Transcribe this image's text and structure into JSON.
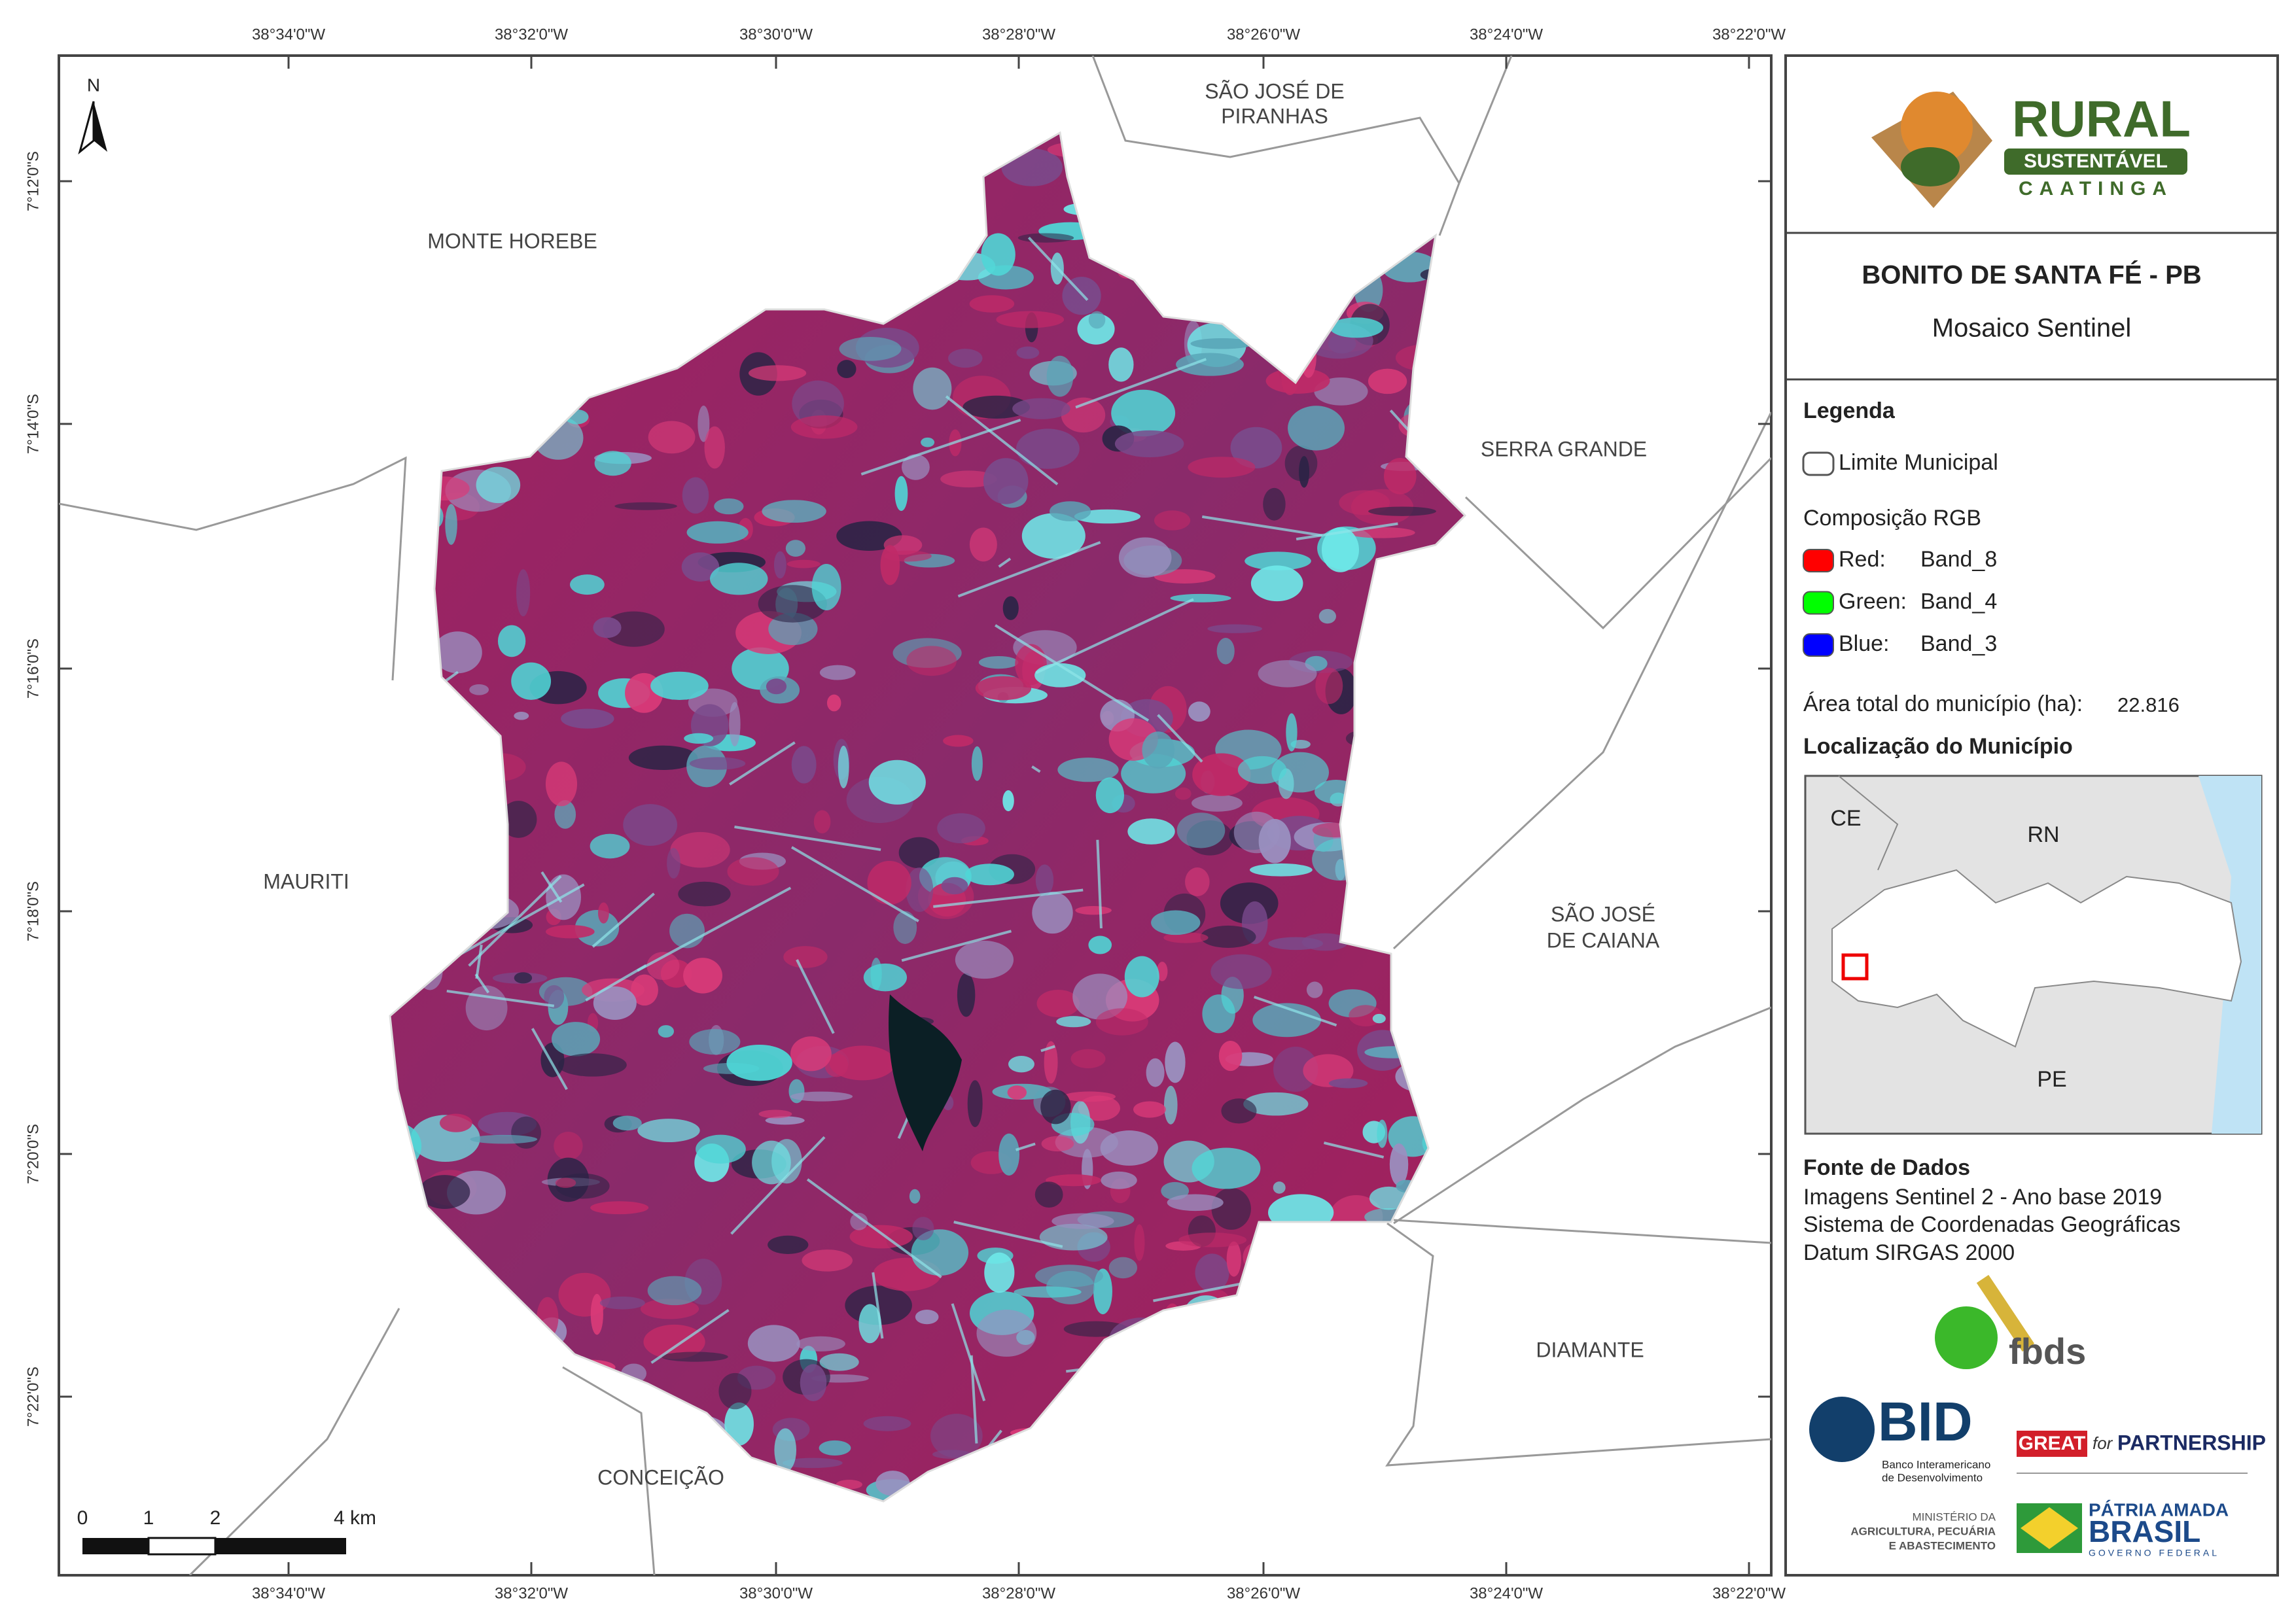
{
  "map": {
    "lon_labels": [
      "38°34'0\"W",
      "38°32'0\"W",
      "38°30'0\"W",
      "38°28'0\"W",
      "38°26'0\"W",
      "38°24'0\"W",
      "38°22'0\"W"
    ],
    "lat_labels": [
      "7°12'0\"S",
      "7°14'0\"S",
      "7°16'0\"S",
      "7°18'0\"S",
      "7°20'0\"S",
      "7°22'0\"S"
    ],
    "places": {
      "sao_jose_piranhas": [
        "SÃO JOSÉ DE",
        "PIRANHAS"
      ],
      "monte_horebe": "MONTE HOREBE",
      "serra_grande": "SERRA GRANDE",
      "mauriti": "MAURITI",
      "sao_jose_caiana": [
        "SÃO JOSÉ",
        "DE CAIANA"
      ],
      "diamante": "DIAMANTE",
      "conceicao": "CONCEIÇÃO"
    },
    "north": "N",
    "scale_bar": [
      "0",
      "1",
      "2",
      "4 km"
    ]
  },
  "logo": {
    "rural": "RURAL",
    "sustentavel": "SUSTENTÁVEL",
    "caatinga": "CAATINGA"
  },
  "title": "BONITO DE SANTA FÉ - PB",
  "subtitle": "Mosaico Sentinel",
  "legend": {
    "heading": "Legenda",
    "boundary": "Limite Municipal",
    "rgb_heading": "Composição RGB",
    "rgb": [
      {
        "label": "Red:",
        "band": "Band_8",
        "color": "#ff0000"
      },
      {
        "label": "Green:",
        "band": "Band_4",
        "color": "#00ff00"
      },
      {
        "label": "Blue:",
        "band": "Band_3",
        "color": "#0000ff"
      }
    ],
    "area_label": "Área total do município (ha):",
    "area_value": "22.816",
    "location_heading": "Localização do Município"
  },
  "inset": {
    "ce": "CE",
    "rn": "RN",
    "pe": "PE"
  },
  "sources": {
    "heading": "Fonte de Dados",
    "lines": [
      "Imagens Sentinel 2 - Ano base 2019",
      "Sistema de Coordenadas Geográficas",
      "Datum SIRGAS 2000"
    ]
  },
  "partners": {
    "fbds": "fbds",
    "bid": "BID",
    "bid_name": [
      "Banco Interamericano",
      "de Desenvolvimento"
    ],
    "great": "GREAT",
    "for": "for",
    "partnership": "PARTNERSHIP",
    "ministry": [
      "MINISTÉRIO DA",
      "AGRICULTURA, PECUÁRIA",
      "E ABASTECIMENTO"
    ],
    "patria": "PÁTRIA AMADA",
    "brasil": "BRASIL",
    "governo": "GOVERNO FEDERAL"
  }
}
